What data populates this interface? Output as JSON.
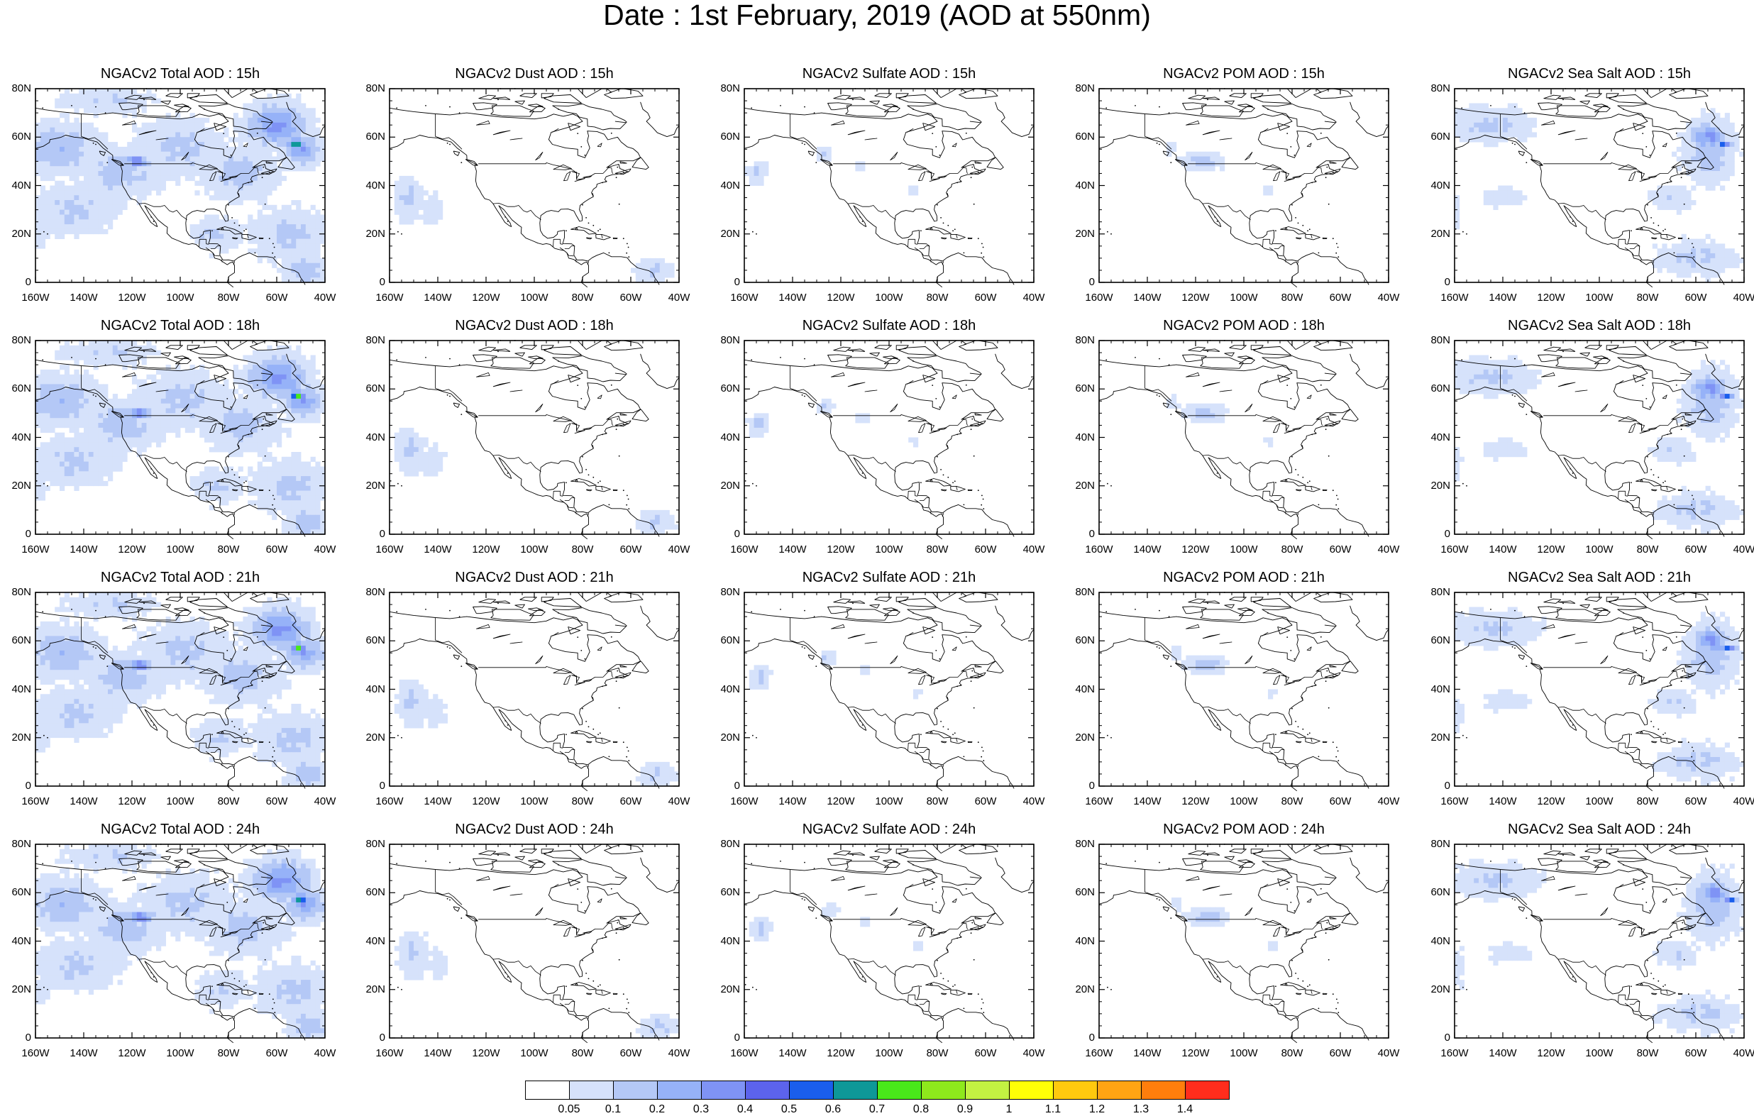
{
  "title": "Date : 1st February, 2019 (AOD at 550nm)",
  "map": {
    "lon_range": [
      -160,
      -40
    ],
    "lat_range": [
      0,
      80
    ],
    "lat_ticks": [
      "80N",
      "60N",
      "40N",
      "20N",
      "0"
    ],
    "lon_ticks": [
      "160W",
      "140W",
      "120W",
      "100W",
      "80W",
      "60W",
      "40W"
    ]
  },
  "panels": [
    {
      "title": "NGACv2 Total AOD : 15h",
      "species": "total",
      "hour": 15
    },
    {
      "title": "NGACv2 Dust AOD : 15h",
      "species": "dust",
      "hour": 15
    },
    {
      "title": "NGACv2 Sulfate AOD : 15h",
      "species": "sulfate",
      "hour": 15
    },
    {
      "title": "NGACv2 POM AOD : 15h",
      "species": "pom",
      "hour": 15
    },
    {
      "title": "NGACv2 Sea Salt AOD : 15h",
      "species": "seasalt",
      "hour": 15
    },
    {
      "title": "NGACv2 Total AOD : 18h",
      "species": "total",
      "hour": 18
    },
    {
      "title": "NGACv2 Dust AOD : 18h",
      "species": "dust",
      "hour": 18
    },
    {
      "title": "NGACv2 Sulfate AOD : 18h",
      "species": "sulfate",
      "hour": 18
    },
    {
      "title": "NGACv2 POM AOD : 18h",
      "species": "pom",
      "hour": 18
    },
    {
      "title": "NGACv2 Sea Salt AOD : 18h",
      "species": "seasalt",
      "hour": 18
    },
    {
      "title": "NGACv2 Total AOD : 21h",
      "species": "total",
      "hour": 21
    },
    {
      "title": "NGACv2 Dust AOD : 21h",
      "species": "dust",
      "hour": 21
    },
    {
      "title": "NGACv2 Sulfate AOD : 21h",
      "species": "sulfate",
      "hour": 21
    },
    {
      "title": "NGACv2 POM AOD : 21h",
      "species": "pom",
      "hour": 21
    },
    {
      "title": "NGACv2 Sea Salt AOD : 21h",
      "species": "seasalt",
      "hour": 21
    },
    {
      "title": "NGACv2 Total AOD : 24h",
      "species": "total",
      "hour": 24
    },
    {
      "title": "NGACv2 Dust AOD : 24h",
      "species": "dust",
      "hour": 24
    },
    {
      "title": "NGACv2 Sulfate AOD : 24h",
      "species": "sulfate",
      "hour": 24
    },
    {
      "title": "NGACv2 POM AOD : 24h",
      "species": "pom",
      "hour": 24
    },
    {
      "title": "NGACv2 Sea Salt  AOD : 24h",
      "species": "seasalt",
      "hour": 24
    }
  ],
  "colorbar": {
    "labels": [
      "0.05",
      "0.1",
      "0.2",
      "0.3",
      "0.4",
      "0.5",
      "0.6",
      "0.7",
      "0.8",
      "0.9",
      "1",
      "1.1",
      "1.2",
      "1.3",
      "1.4"
    ],
    "colors": [
      "#ffffff",
      "#d6e2fb",
      "#b4c8f6",
      "#96b2f8",
      "#7f93f5",
      "#5c63ec",
      "#1a5eec",
      "#0e9898",
      "#49e81a",
      "#8ee91c",
      "#c3f242",
      "#ffff07",
      "#ffc90e",
      "#ffa413",
      "#ff7e0c",
      "#ff2d1c"
    ]
  }
}
